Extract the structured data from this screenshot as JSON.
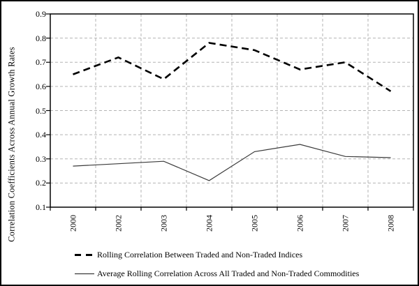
{
  "chart_data": {
    "type": "line",
    "title": "",
    "xlabel": "",
    "ylabel": "Correlation Coefficients Across Annual Growth Rates",
    "categories": [
      "2000",
      "2002",
      "2003",
      "2004",
      "2005",
      "2006",
      "2007",
      "2008"
    ],
    "series": [
      {
        "name": "Rolling Correlation Between Traded and Non-Traded Indices",
        "line_style": "dashed",
        "color": "#000000",
        "values": [
          0.65,
          0.72,
          0.63,
          0.78,
          0.75,
          0.67,
          0.7,
          0.58
        ]
      },
      {
        "name": "Average Rolling Correlation Across All Traded and Non-Traded Commodities",
        "line_style": "solid",
        "color": "#3a3a3a",
        "values": [
          0.27,
          0.28,
          0.29,
          0.21,
          0.33,
          0.36,
          0.31,
          0.305
        ]
      }
    ],
    "ylim": [
      0.1,
      0.9
    ],
    "yticks": [
      "0.9",
      "0.8",
      "0.7",
      "0.6",
      "0.5",
      "0.4",
      "0.3",
      "0.2",
      "0.1"
    ],
    "grid": {
      "horizontal": true,
      "vertical": true,
      "style": "dashed",
      "color": "#b3b3b3"
    },
    "legend_position": "bottom-left",
    "colors": {
      "axis": "#000000",
      "grid": "#b3b3b3",
      "background": "#ffffff",
      "figure_border": "#000000"
    }
  }
}
